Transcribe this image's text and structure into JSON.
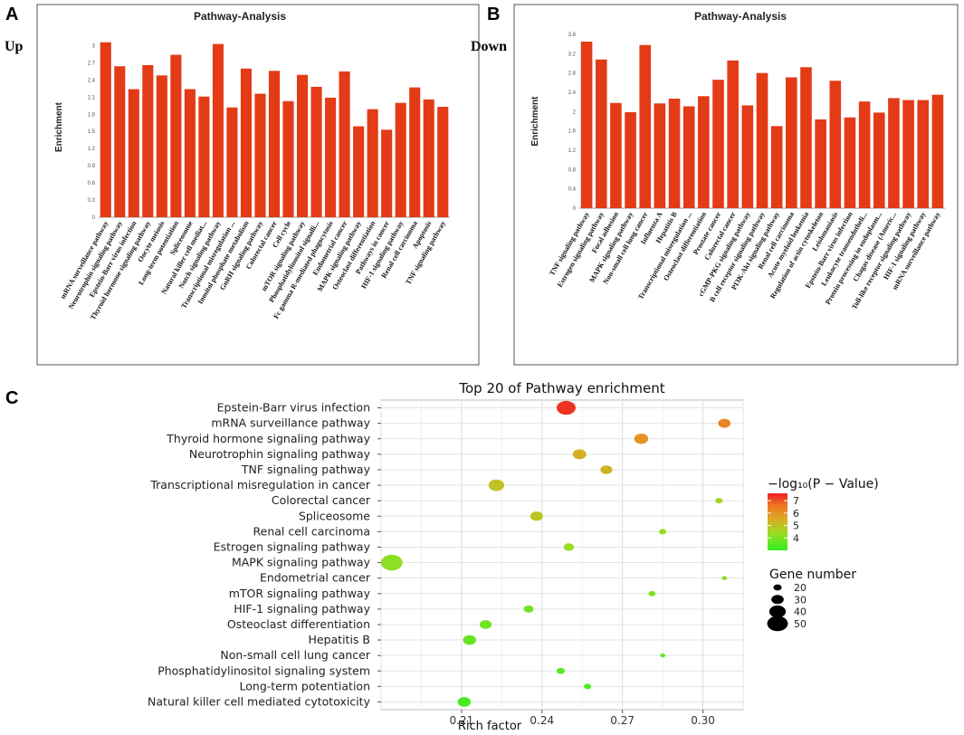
{
  "panels": {
    "a_label": "A",
    "b_label": "B",
    "c_label": "C",
    "a_side": "Up",
    "b_side": "Down"
  },
  "colors": {
    "bar": "#e33b16",
    "gradient": [
      "#33ee22",
      "#99dd22",
      "#ddaa22",
      "#ee7722",
      "#ee2222"
    ]
  },
  "chart_data": [
    {
      "type": "bar",
      "title": "Pathway-Analysis",
      "ylabel": "Enrichment",
      "xlabel": "",
      "ylim": [
        0,
        3.15
      ],
      "yticks": [
        0,
        0.3,
        0.6,
        0.9,
        1.2,
        1.5,
        1.8,
        2.1,
        2.4,
        2.7,
        3
      ],
      "yticklabels": [
        "0",
        "0.3",
        "0.6",
        "0.9",
        "1.2",
        "1.5",
        "1.8",
        "2.1",
        "2.4",
        "2.7",
        "3"
      ],
      "categories": [
        "mRNA surveillance pathway",
        "Neurotrophin signaling pathway",
        "Epstein-Barr virus infection",
        "Thyroid hormone signaling pathway",
        "Oocyte meiosis",
        "Long-term potentiation",
        "Spliceosome",
        "Natural killer cell mediat...",
        "Notch signaling pathway",
        "Transcriptional misregulation ...",
        "Inositol phosphate metabolism",
        "GnRH signaling pathway",
        "Colorectal cancer",
        "Cell cycle",
        "mTOR signaling pathway",
        "Phosphatidylinositol signalli...",
        "Fc gamma R-mediated phagocytosis",
        "Endometrial cancer",
        "MAPK signaling pathway",
        "Osteoclast differentiation",
        "Pathways in cancer",
        "HIF-1 signaling pathway",
        "Renal cell carcinoma",
        "Apoptosis",
        "TNF signaling pathway"
      ],
      "values": [
        3.06,
        2.64,
        2.24,
        2.66,
        2.48,
        2.84,
        2.24,
        2.11,
        3.03,
        1.92,
        2.6,
        2.16,
        2.56,
        2.03,
        2.49,
        2.28,
        2.09,
        2.55,
        1.59,
        1.89,
        1.53,
        2.0,
        2.27,
        2.06,
        1.93
      ]
    },
    {
      "type": "bar",
      "title": "Pathway-Analysis",
      "ylabel": "Enrichment",
      "xlabel": "",
      "ylim": [
        0,
        3.6
      ],
      "yticks": [
        0,
        0.4,
        0.8,
        1.2,
        1.6,
        2,
        2.4,
        2.8,
        3.2,
        3.6
      ],
      "yticklabels": [
        "0",
        "0.4",
        "0.8",
        "1.2",
        "1.6",
        "2",
        "2.4",
        "2.8",
        "3.2",
        "3.6"
      ],
      "categories": [
        "TNF signaling pathway",
        "Estrogen signaling pathway",
        "Focal adhesion",
        "MAPK signaling pathway",
        "Non-small cell lung cancer",
        "Influenza A",
        "Hepatitis B",
        "Transcriptional misregulation ...",
        "Osteoclast differentiation",
        "Prostate cancer",
        "Colorectal cancer",
        "cGMP-PKG signaling pathway",
        "B cell receptor signaling pathway",
        "PI3K-Akt signaling pathway",
        "Renal cell carcinoma",
        "Acute myeloid leukemia",
        "Regulation of actin cytoskeleton",
        "Leishmaniasis",
        "Epstein-Barr virus infection",
        "Leukocyte transendotheli...",
        "Protein processing in endoplasm...",
        "Chagas disease (Americ...",
        "Toll-like receptor signaling pathway",
        "HIF-1 signaling pathway",
        "mRNA surveillance pathway"
      ],
      "values": [
        3.45,
        3.08,
        2.18,
        1.99,
        3.38,
        2.17,
        2.27,
        2.11,
        2.32,
        2.66,
        3.06,
        2.13,
        2.8,
        1.7,
        2.71,
        2.92,
        1.84,
        2.64,
        1.88,
        2.21,
        1.98,
        2.28,
        2.24,
        2.24,
        2.35
      ]
    },
    {
      "type": "scatter",
      "title": "Top 20 of Pathway enrichment",
      "xlabel": "Rich factor",
      "ylabel": "",
      "xlim": [
        0.18,
        0.315
      ],
      "xticks": [
        0.21,
        0.24,
        0.27,
        0.3
      ],
      "xticklabels": [
        "0.21",
        "0.24",
        "0.27",
        "0.30"
      ],
      "color_legend": {
        "title": "−log₁₀(P − Value)",
        "range": [
          3,
          7.6
        ],
        "ticks": [
          4,
          5,
          6,
          7
        ],
        "ticklabels": [
          "4",
          "5",
          "6",
          "7"
        ]
      },
      "size_legend": {
        "title": "Gene number",
        "values": [
          20,
          30,
          40,
          50
        ],
        "labels": [
          "20",
          "30",
          "40",
          "50"
        ]
      },
      "points": [
        {
          "pathway": "Epstein-Barr virus infection",
          "rich_factor": 0.249,
          "neg_log10_p": 7.4,
          "gene_number": 46
        },
        {
          "pathway": "mRNA surveillance pathway",
          "rich_factor": 0.308,
          "neg_log10_p": 6.3,
          "gene_number": 30
        },
        {
          "pathway": "Thyroid hormone signaling pathway",
          "rich_factor": 0.277,
          "neg_log10_p": 6.0,
          "gene_number": 34
        },
        {
          "pathway": "Neurotrophin signaling pathway",
          "rich_factor": 0.254,
          "neg_log10_p": 5.4,
          "gene_number": 33
        },
        {
          "pathway": "TNF signaling pathway",
          "rich_factor": 0.264,
          "neg_log10_p": 5.3,
          "gene_number": 29
        },
        {
          "pathway": "Transcriptional misregulation in cancer",
          "rich_factor": 0.223,
          "neg_log10_p": 5.0,
          "gene_number": 38
        },
        {
          "pathway": "Colorectal cancer",
          "rich_factor": 0.306,
          "neg_log10_p": 4.6,
          "gene_number": 18
        },
        {
          "pathway": "Spliceosome",
          "rich_factor": 0.238,
          "neg_log10_p": 4.9,
          "gene_number": 31
        },
        {
          "pathway": "Renal cell carcinoma",
          "rich_factor": 0.285,
          "neg_log10_p": 4.4,
          "gene_number": 18
        },
        {
          "pathway": "Estrogen signaling pathway",
          "rich_factor": 0.25,
          "neg_log10_p": 4.4,
          "gene_number": 25
        },
        {
          "pathway": "MAPK signaling pathway",
          "rich_factor": 0.184,
          "neg_log10_p": 4.2,
          "gene_number": 52
        },
        {
          "pathway": "Endometrial cancer",
          "rich_factor": 0.308,
          "neg_log10_p": 4.1,
          "gene_number": 13
        },
        {
          "pathway": "mTOR signaling pathway",
          "rich_factor": 0.281,
          "neg_log10_p": 4.0,
          "gene_number": 17
        },
        {
          "pathway": "HIF-1 signaling pathway",
          "rich_factor": 0.235,
          "neg_log10_p": 3.9,
          "gene_number": 24
        },
        {
          "pathway": "Osteoclast differentiation",
          "rich_factor": 0.219,
          "neg_log10_p": 3.8,
          "gene_number": 29
        },
        {
          "pathway": "Hepatitis B",
          "rich_factor": 0.213,
          "neg_log10_p": 3.7,
          "gene_number": 32
        },
        {
          "pathway": "Non-small cell lung cancer",
          "rich_factor": 0.285,
          "neg_log10_p": 3.6,
          "gene_number": 13
        },
        {
          "pathway": "Phosphatidylinositol signaling system",
          "rich_factor": 0.247,
          "neg_log10_p": 3.5,
          "gene_number": 20
        },
        {
          "pathway": "Long-term potentiation",
          "rich_factor": 0.257,
          "neg_log10_p": 3.4,
          "gene_number": 18
        },
        {
          "pathway": "Natural killer cell mediated cytotoxicity",
          "rich_factor": 0.211,
          "neg_log10_p": 3.3,
          "gene_number": 32
        }
      ]
    }
  ]
}
